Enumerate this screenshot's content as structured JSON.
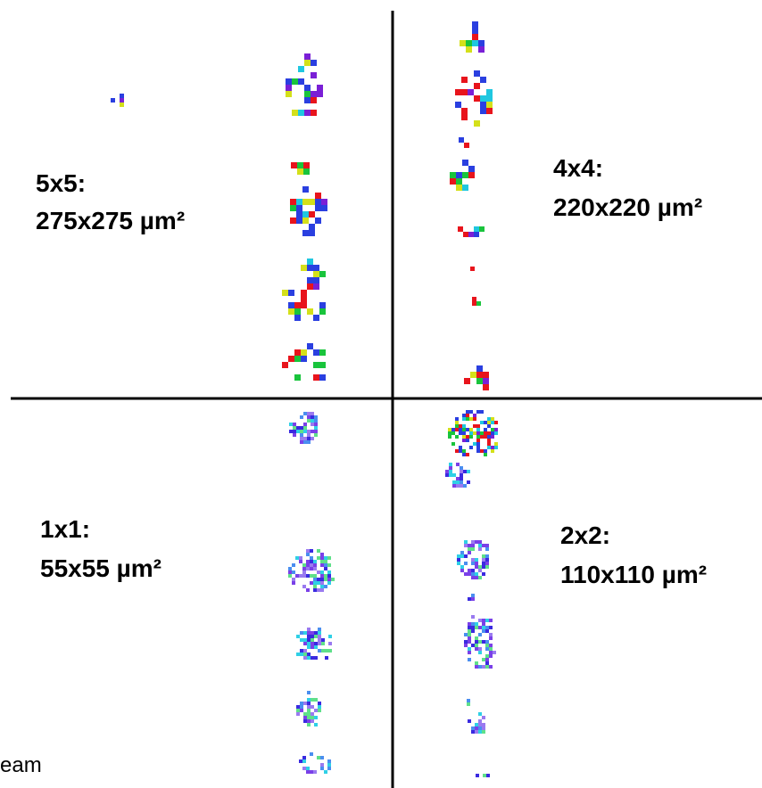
{
  "quadrants": [
    {
      "label": "5x5:",
      "size": "275x275 µm²"
    },
    {
      "label": "4x4:",
      "size": "220x220 µm²"
    },
    {
      "label": "1x1:",
      "size": "55x55 µm²"
    },
    {
      "label": "2x2:",
      "size": "110x110 µm²"
    }
  ],
  "footer": "eam"
}
